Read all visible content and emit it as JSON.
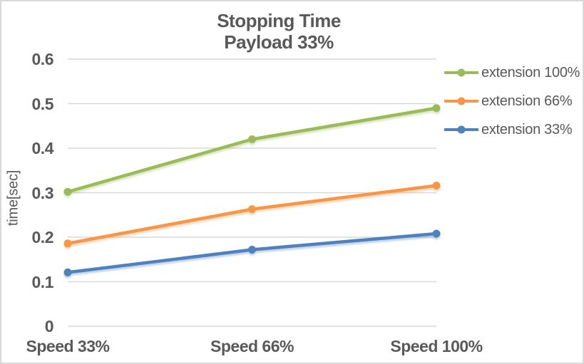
{
  "chart": {
    "title_line1": "Stopping Time",
    "title_line2": "Payload 33%"
  },
  "chart_data": {
    "type": "line",
    "title": "Stopping Time — Payload 33%",
    "categories": [
      "Speed 33%",
      "Speed 66%",
      "Speed 100%"
    ],
    "series": [
      {
        "name": "extension 100%",
        "color": "#9BBB59",
        "values": [
          0.302,
          0.42,
          0.49
        ]
      },
      {
        "name": "extension 66%",
        "color": "#F79646",
        "values": [
          0.186,
          0.263,
          0.316
        ]
      },
      {
        "name": "extension 33%",
        "color": "#4F81BD",
        "values": [
          0.121,
          0.172,
          0.208
        ]
      }
    ],
    "xlabel": "",
    "ylabel": "time[sec]",
    "ylim": [
      0,
      0.6
    ],
    "yticks": [
      {
        "value": 0,
        "label": "0"
      },
      {
        "value": 0.1,
        "label": "0.1"
      },
      {
        "value": 0.2,
        "label": "0.2"
      },
      {
        "value": 0.3,
        "label": "0.3"
      },
      {
        "value": 0.4,
        "label": "0.4"
      },
      {
        "value": 0.5,
        "label": "0.5"
      },
      {
        "value": 0.6,
        "label": "0.6"
      }
    ],
    "grid": "horizontal",
    "legend_position": "right",
    "text_color": "#595959",
    "gridline_color": "#D9D9D9",
    "background_color": "#FFFFFF",
    "border_color": "#D9D9D9"
  }
}
